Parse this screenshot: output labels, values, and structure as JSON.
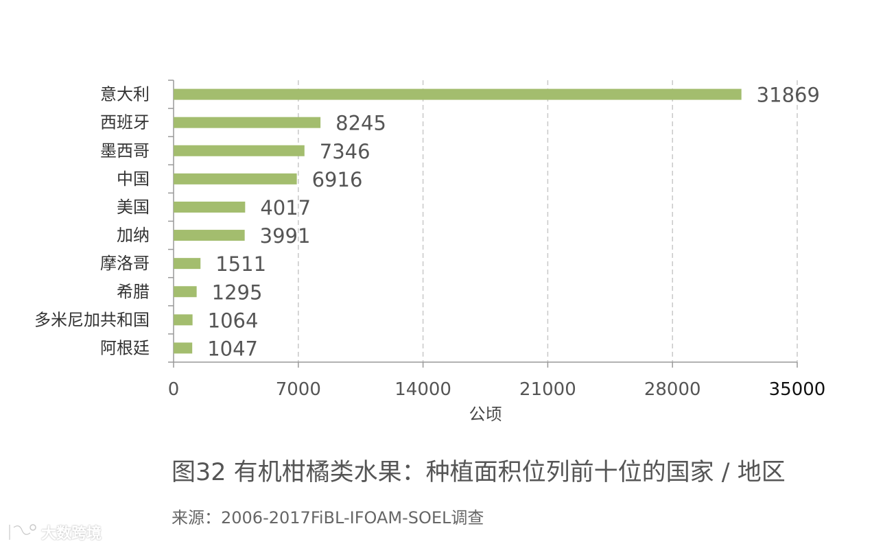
{
  "chart_data": {
    "type": "bar",
    "orientation": "horizontal",
    "categories": [
      "意大利",
      "西班牙",
      "墨西哥",
      "中国",
      "美国",
      "加纳",
      "摩洛哥",
      "希腊",
      "多米尼加共和国",
      "阿根廷"
    ],
    "values": [
      31869,
      8245,
      7346,
      6916,
      4017,
      3991,
      1511,
      1295,
      1064,
      1047
    ],
    "xlabel": "公顷",
    "xlim": [
      0,
      35000
    ],
    "xticks": [
      0,
      7000,
      14000,
      21000,
      28000,
      35000
    ],
    "grid": "vertical dashed",
    "bar_color": "#a3bd6e"
  },
  "caption": "图32 有机柑橘类水果：种植面积位列前十位的国家 / 地区",
  "source": "来源：2006-2017FiBL-IFOAM-SOEL调查",
  "watermark": "大数跨境"
}
